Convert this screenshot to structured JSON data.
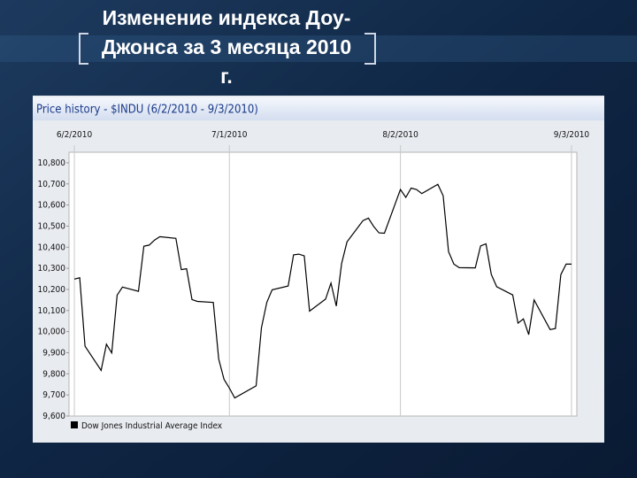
{
  "slide": {
    "title": "Изменение индекса Доу-Джонса за 3 месяца 2010 г."
  },
  "chart_data": {
    "type": "line",
    "title": "Price history - $INDU (6/2/2010 - 9/3/2010)",
    "x": [
      "2010-06-02",
      "2010-06-03",
      "2010-06-04",
      "2010-06-07",
      "2010-06-08",
      "2010-06-09",
      "2010-06-10",
      "2010-06-11",
      "2010-06-14",
      "2010-06-15",
      "2010-06-16",
      "2010-06-17",
      "2010-06-18",
      "2010-06-21",
      "2010-06-22",
      "2010-06-23",
      "2010-06-24",
      "2010-06-25",
      "2010-06-28",
      "2010-06-29",
      "2010-06-30",
      "2010-07-01",
      "2010-07-02",
      "2010-07-06",
      "2010-07-07",
      "2010-07-08",
      "2010-07-09",
      "2010-07-12",
      "2010-07-13",
      "2010-07-14",
      "2010-07-15",
      "2010-07-16",
      "2010-07-19",
      "2010-07-20",
      "2010-07-21",
      "2010-07-22",
      "2010-07-23",
      "2010-07-26",
      "2010-07-27",
      "2010-07-28",
      "2010-07-29",
      "2010-07-30",
      "2010-08-02",
      "2010-08-03",
      "2010-08-04",
      "2010-08-05",
      "2010-08-06",
      "2010-08-09",
      "2010-08-10",
      "2010-08-11",
      "2010-08-12",
      "2010-08-13",
      "2010-08-16",
      "2010-08-17",
      "2010-08-18",
      "2010-08-19",
      "2010-08-20",
      "2010-08-23",
      "2010-08-24",
      "2010-08-25",
      "2010-08-26",
      "2010-08-27",
      "2010-08-30",
      "2010-08-31",
      "2010-09-01",
      "2010-09-02",
      "2010-09-03"
    ],
    "series": [
      {
        "name": "Dow Jones Industrial Average Index",
        "color": "#000000",
        "values": [
          10249,
          10255,
          9931,
          9816,
          9940,
          9899,
          10173,
          10211,
          10191,
          10405,
          10410,
          10434,
          10450,
          10442,
          10294,
          10298,
          10152,
          10143,
          10138,
          9870,
          9774,
          9732,
          9686,
          9743,
          10018,
          10139,
          10198,
          10216,
          10364,
          10367,
          10359,
          10097,
          10154,
          10230,
          10121,
          10322,
          10425,
          10526,
          10538,
          10498,
          10468,
          10466,
          10674,
          10636,
          10680,
          10674,
          10654,
          10698,
          10644,
          10379,
          10320,
          10303,
          10302,
          10406,
          10416,
          10271,
          10213,
          10174,
          10040,
          10060,
          9986,
          10150,
          10010,
          10015,
          10270,
          10320,
          10320
        ]
      }
    ],
    "xlim": [
      "2010-06-01",
      "2010-09-04"
    ],
    "xticks": [
      {
        "value": "2010-06-02",
        "label": "6/2/2010"
      },
      {
        "value": "2010-07-01",
        "label": "7/1/2010"
      },
      {
        "value": "2010-08-02",
        "label": "8/2/2010"
      },
      {
        "value": "2010-09-03",
        "label": "9/3/2010"
      }
    ],
    "ylim": [
      9600,
      10850
    ],
    "yticks": [
      {
        "value": 9600,
        "label": "9,600"
      },
      {
        "value": 9700,
        "label": "9,700"
      },
      {
        "value": 9800,
        "label": "9,800"
      },
      {
        "value": 9900,
        "label": "9,900"
      },
      {
        "value": 10000,
        "label": "10,000"
      },
      {
        "value": 10100,
        "label": "10,100"
      },
      {
        "value": 10200,
        "label": "10,200"
      },
      {
        "value": 10300,
        "label": "10,300"
      },
      {
        "value": 10400,
        "label": "10,400"
      },
      {
        "value": 10500,
        "label": "10,500"
      },
      {
        "value": 10600,
        "label": "10,600"
      },
      {
        "value": 10700,
        "label": "10,700"
      },
      {
        "value": 10800,
        "label": "10,800"
      }
    ],
    "grid": "x"
  }
}
